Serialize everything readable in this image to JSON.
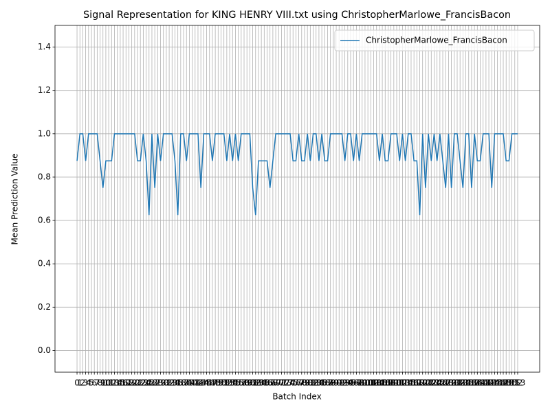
{
  "chart_data": {
    "type": "line",
    "title": "Signal Representation for KING HENRY VIII.txt using ChristopherMarlowe_FrancisBacon",
    "xlabel": "Batch Index",
    "ylabel": "Mean Prediction Value",
    "x": [
      0,
      1,
      2,
      3,
      4,
      5,
      6,
      7,
      8,
      9,
      10,
      11,
      12,
      13,
      14,
      15,
      16,
      17,
      18,
      19,
      20,
      21,
      22,
      23,
      24,
      25,
      26,
      27,
      28,
      29,
      30,
      31,
      32,
      33,
      34,
      35,
      36,
      37,
      38,
      39,
      40,
      41,
      42,
      43,
      44,
      45,
      46,
      47,
      48,
      49,
      50,
      51,
      52,
      53,
      54,
      55,
      56,
      57,
      58,
      59,
      60,
      61,
      62,
      63,
      64,
      65,
      66,
      67,
      68,
      69,
      70,
      71,
      72,
      73,
      74,
      75,
      76,
      77,
      78,
      79,
      80,
      81,
      82,
      83,
      84,
      85,
      86,
      87,
      88,
      89,
      90,
      91,
      92,
      93,
      94,
      95,
      96,
      97,
      98,
      99,
      100,
      101,
      102,
      103,
      104,
      105,
      106,
      107,
      108,
      109,
      110,
      111,
      112,
      113,
      114,
      115,
      116,
      117,
      118,
      119,
      120,
      121,
      122,
      123,
      124,
      125,
      126,
      127,
      128,
      129,
      130,
      131,
      132,
      133,
      134,
      135,
      136,
      137,
      138,
      139,
      140,
      141,
      142,
      143,
      144,
      145,
      146,
      147,
      148,
      149,
      150,
      151,
      152,
      153
    ],
    "series": [
      {
        "name": "ChristopherMarlowe_FrancisBacon",
        "color": "#1f77b4",
        "values": [
          0.875,
          1,
          1,
          0.875,
          1,
          1,
          1,
          1,
          0.875,
          0.75,
          0.875,
          0.875,
          0.875,
          1,
          1,
          1,
          1,
          1,
          1,
          1,
          1,
          0.875,
          0.875,
          1,
          0.875,
          0.625,
          1,
          0.75,
          1,
          0.875,
          1,
          1,
          1,
          1,
          0.875,
          0.625,
          1,
          1,
          0.875,
          1,
          1,
          1,
          1,
          0.75,
          1,
          1,
          1,
          0.875,
          1,
          1,
          1,
          1,
          0.875,
          1,
          0.875,
          1,
          0.875,
          1,
          1,
          1,
          1,
          0.75,
          0.625,
          0.875,
          0.875,
          0.875,
          0.875,
          0.75,
          0.875,
          1,
          1,
          1,
          1,
          1,
          1,
          0.875,
          0.875,
          1,
          0.875,
          0.875,
          1,
          0.875,
          1,
          1,
          0.875,
          1,
          0.875,
          0.875,
          1,
          1,
          1,
          1,
          1,
          0.875,
          1,
          1,
          0.875,
          1,
          0.875,
          1,
          1,
          1,
          1,
          1,
          1,
          0.875,
          1,
          0.875,
          0.875,
          1,
          1,
          1,
          0.875,
          1,
          0.875,
          1,
          1,
          0.875,
          0.875,
          0.625,
          1,
          0.75,
          1,
          0.875,
          1,
          0.875,
          1,
          0.875,
          0.75,
          1,
          0.75,
          1,
          1,
          0.875,
          0.75,
          1,
          1,
          0.75,
          1,
          0.875,
          0.875,
          1,
          1,
          1,
          0.75,
          1,
          1,
          1,
          1,
          0.875,
          0.875,
          1,
          1,
          1
        ]
      }
    ],
    "xlim": [
      -7.65,
      160.65
    ],
    "xticks": [
      0,
      1,
      2,
      3,
      4,
      5,
      6,
      7,
      8,
      9,
      10,
      11,
      12,
      13,
      14,
      15,
      16,
      17,
      18,
      19,
      20,
      21,
      22,
      23,
      24,
      25,
      26,
      27,
      28,
      29,
      30,
      31,
      32,
      33,
      34,
      35,
      36,
      37,
      38,
      39,
      40,
      41,
      42,
      43,
      44,
      45,
      46,
      47,
      48,
      49,
      50,
      51,
      52,
      53,
      54,
      55,
      56,
      57,
      58,
      59,
      60,
      61,
      62,
      63,
      64,
      65,
      66,
      67,
      68,
      69,
      70,
      71,
      72,
      73,
      74,
      75,
      76,
      77,
      78,
      79,
      80,
      81,
      82,
      83,
      84,
      85,
      86,
      87,
      88,
      89,
      90,
      91,
      92,
      93,
      94,
      95,
      96,
      97,
      98,
      99,
      100,
      101,
      102,
      103,
      104,
      105,
      106,
      107,
      108,
      109,
      110,
      111,
      112,
      113,
      114,
      115,
      116,
      117,
      118,
      119,
      120,
      121,
      122,
      123,
      124,
      125,
      126,
      127,
      128,
      129,
      130,
      131,
      132,
      133,
      134,
      135,
      136,
      137,
      138,
      139,
      140,
      141,
      142,
      143,
      144,
      145,
      146,
      147,
      148,
      149,
      150,
      151,
      152,
      153
    ],
    "ylim": [
      -0.1,
      1.5
    ],
    "yticks": [
      {
        "value": 0,
        "label": "0.0"
      },
      0.2,
      0.4,
      0.6,
      0.8,
      {
        "value": 1,
        "label": "1.0"
      },
      1.2,
      1.4
    ],
    "grid": true,
    "legend": "upper right"
  }
}
